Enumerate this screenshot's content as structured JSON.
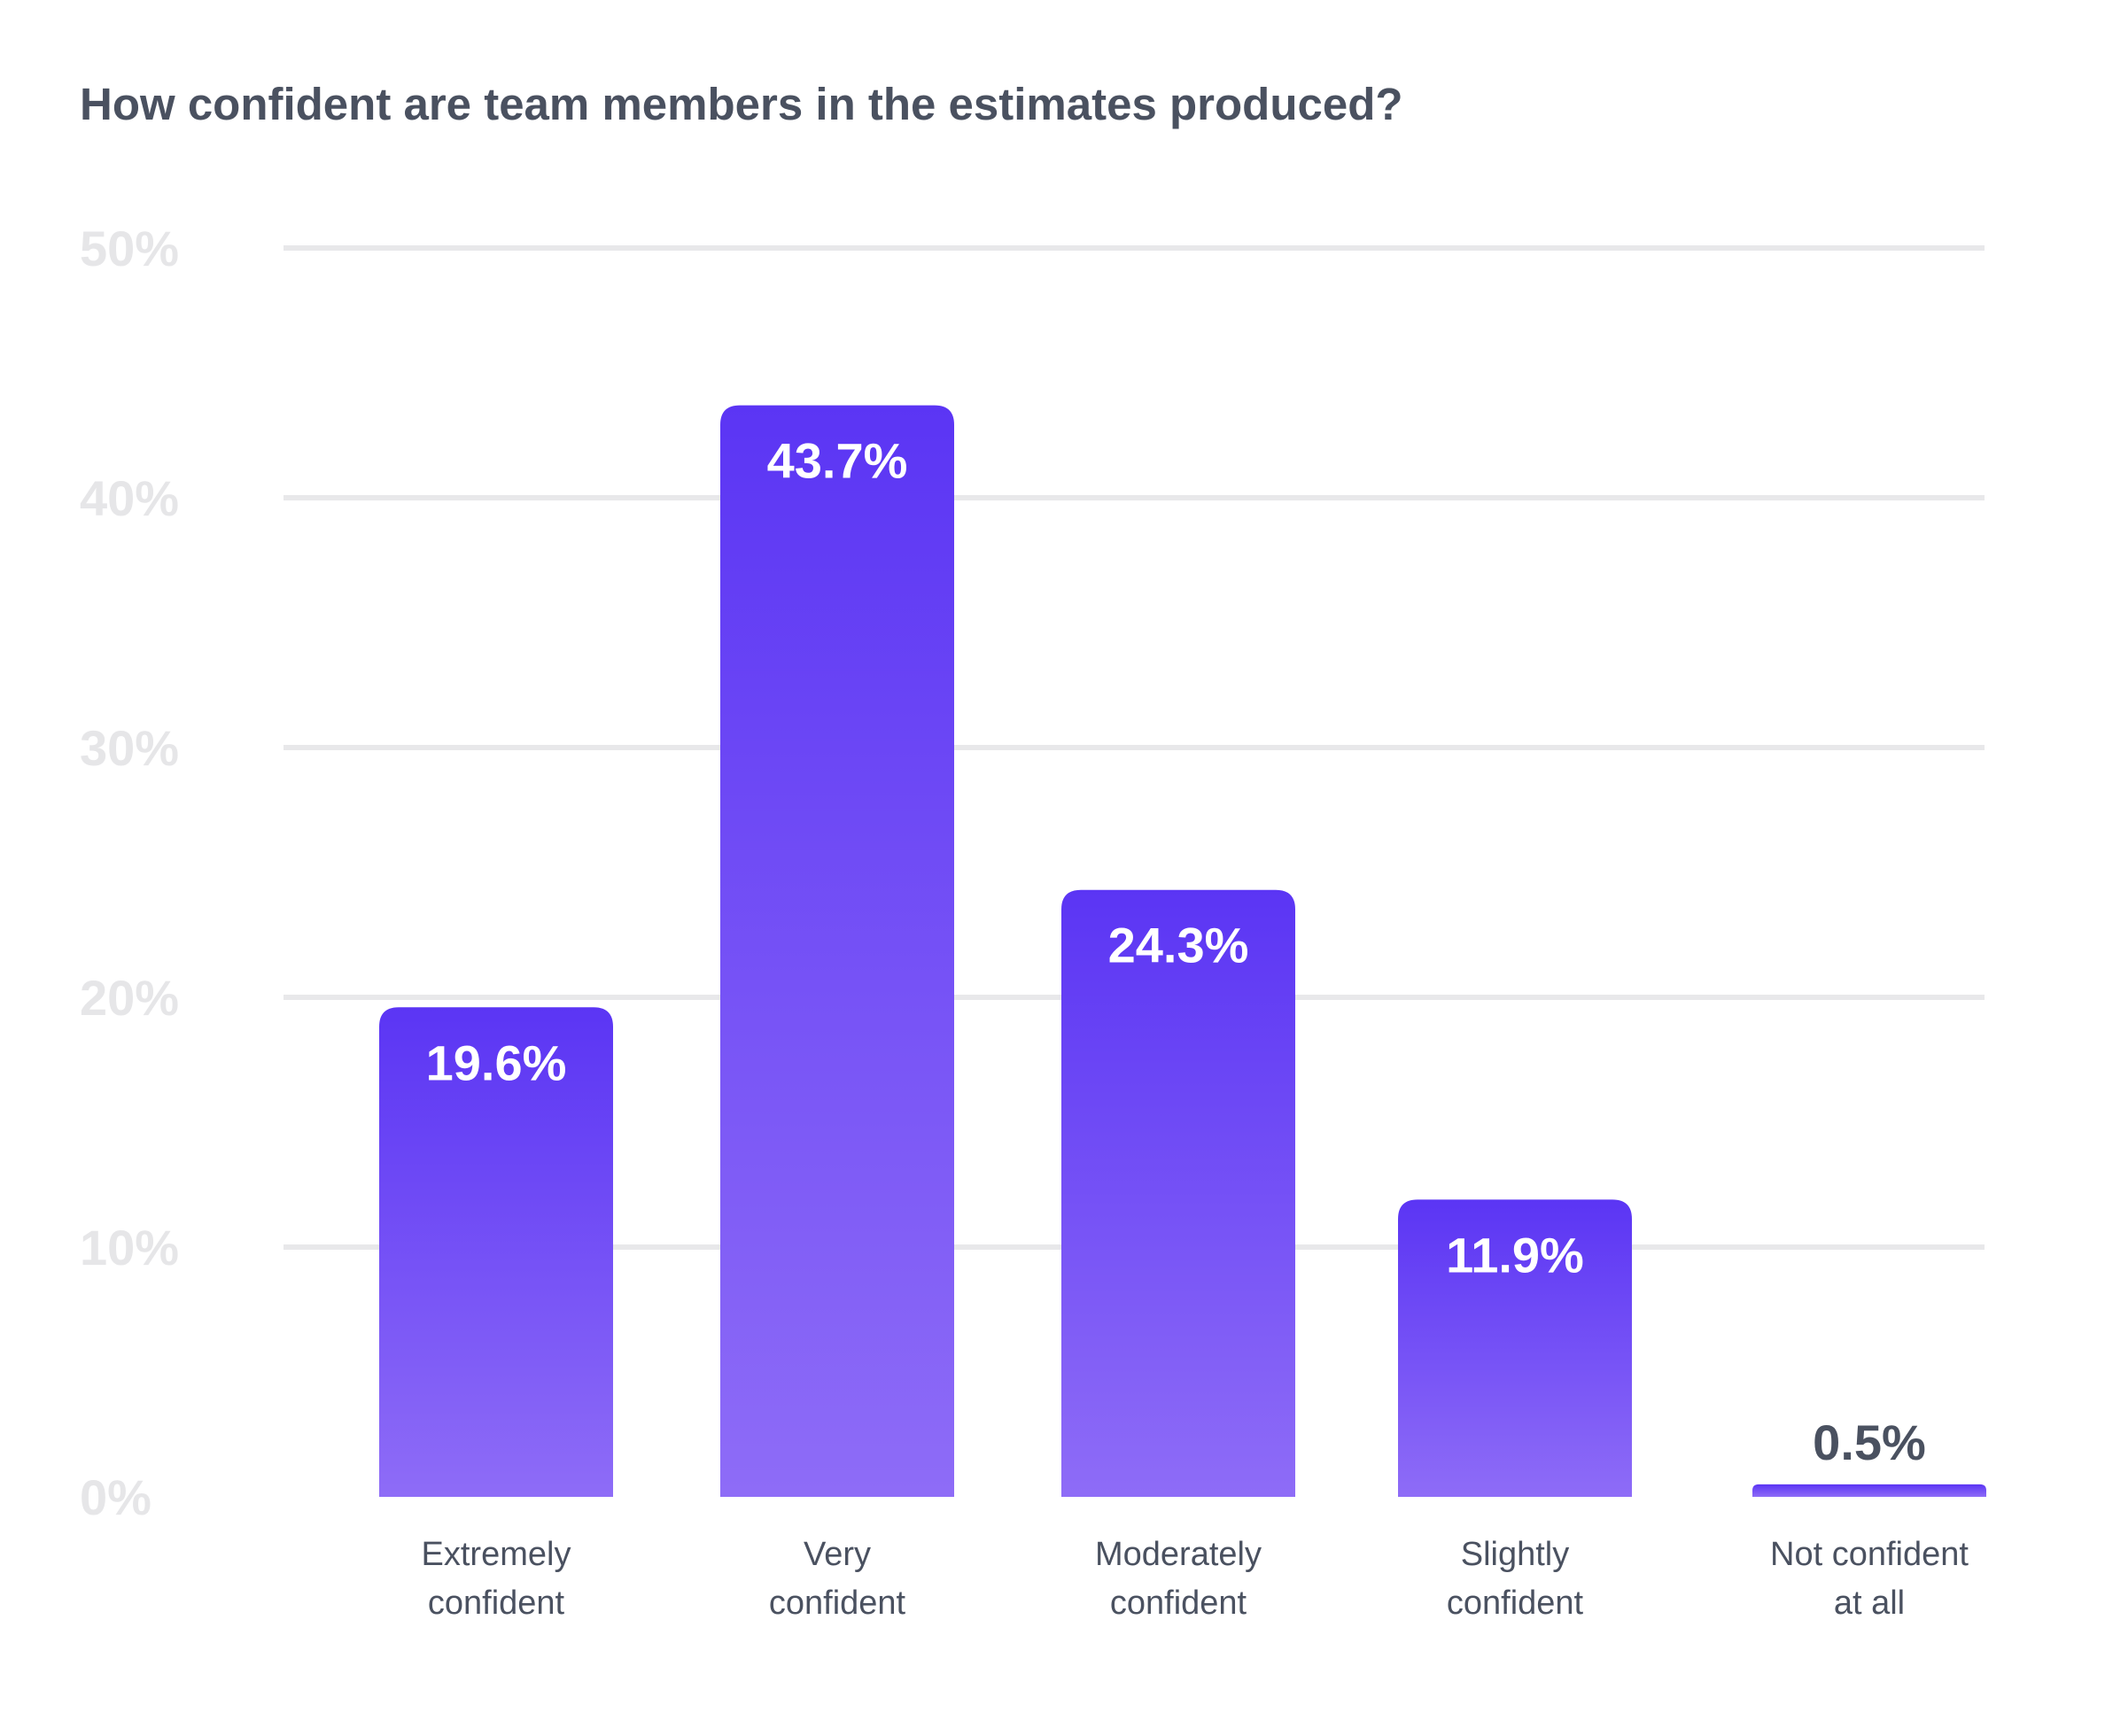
{
  "chart_data": {
    "type": "bar",
    "title": "How confident are team members in the estimates produced?",
    "categories": [
      [
        "Extremely",
        "confident"
      ],
      [
        "Very",
        "confident"
      ],
      [
        "Moderately",
        "confident"
      ],
      [
        "Slightly",
        "confident"
      ],
      [
        "Not confident",
        "at all"
      ]
    ],
    "values": [
      19.6,
      43.7,
      24.3,
      11.9,
      0.5
    ],
    "value_labels": [
      "19.6%",
      "43.7%",
      "24.3%",
      "11.9%",
      "0.5%"
    ],
    "xlabel": "",
    "ylabel": "",
    "ylim": [
      0,
      50
    ],
    "yticks": [
      0,
      10,
      20,
      30,
      40,
      50
    ],
    "ytick_labels": [
      "0%",
      "10%",
      "20%",
      "30%",
      "40%",
      "50%"
    ],
    "grid": true,
    "legend": "none"
  },
  "colors": {
    "bar_top": "#5b35f4",
    "bar_bottom": "#8e6cf7",
    "label_inside": "#ffffff",
    "label_outside": "#4a5160",
    "axis_text": "#e6e6e8",
    "title": "#4a5160",
    "grid": "#e8e8ea"
  }
}
